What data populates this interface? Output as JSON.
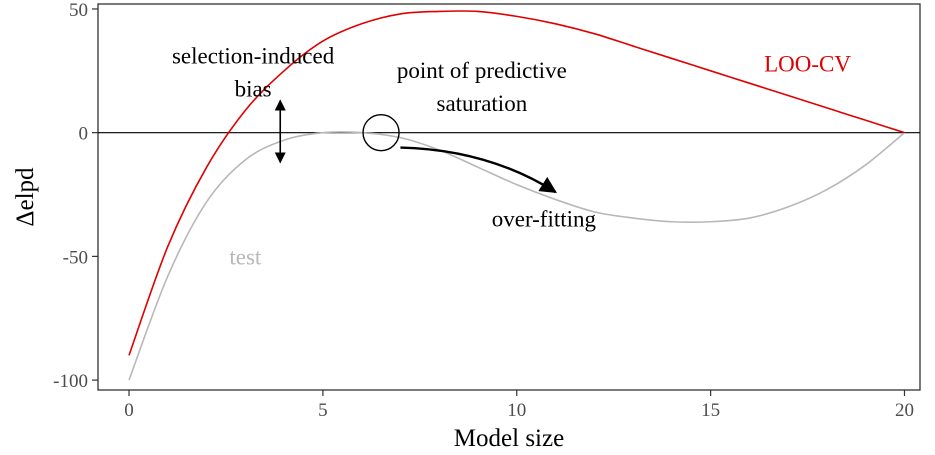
{
  "chart_data": {
    "type": "line",
    "xlabel": "Model size",
    "ylabel": "Δelpd",
    "xlim": [
      -0.8,
      20.4
    ],
    "ylim": [
      -104,
      52
    ],
    "x_ticks": [
      0,
      5,
      10,
      15,
      20
    ],
    "x_tick_labels": [
      "0",
      "5",
      "10",
      "15",
      "20"
    ],
    "y_ticks": [
      50,
      0,
      -50,
      -100
    ],
    "y_tick_labels": [
      "50",
      "0",
      "-50",
      "-100"
    ],
    "grid": false,
    "reference_line_y": 0,
    "series": [
      {
        "name": "LOO-CV",
        "color": "#e00000",
        "label_at": [
          17.5,
          28
        ],
        "points": [
          [
            0,
            -90
          ],
          [
            1,
            -46
          ],
          [
            2,
            -14
          ],
          [
            3,
            9
          ],
          [
            4,
            25
          ],
          [
            5,
            37
          ],
          [
            6,
            44
          ],
          [
            7,
            48
          ],
          [
            8,
            49
          ],
          [
            9,
            49
          ],
          [
            10,
            47
          ],
          [
            11,
            44
          ],
          [
            12,
            40
          ],
          [
            13,
            35
          ],
          [
            14,
            30
          ],
          [
            15,
            25
          ],
          [
            16,
            20
          ],
          [
            17,
            15
          ],
          [
            18,
            10
          ],
          [
            19,
            5
          ],
          [
            20,
            0
          ]
        ]
      },
      {
        "name": "test",
        "color": "#b8b8b8",
        "label_at": [
          3.0,
          -50
        ],
        "points": [
          [
            0,
            -100
          ],
          [
            1,
            -58
          ],
          [
            2,
            -28
          ],
          [
            3,
            -11
          ],
          [
            4,
            -3
          ],
          [
            5,
            0
          ],
          [
            6,
            0
          ],
          [
            7,
            -2
          ],
          [
            8,
            -7
          ],
          [
            9,
            -14
          ],
          [
            10,
            -21
          ],
          [
            11,
            -27
          ],
          [
            12,
            -32
          ],
          [
            13,
            -34.5
          ],
          [
            14,
            -36
          ],
          [
            15,
            -36
          ],
          [
            16,
            -34.5
          ],
          [
            17,
            -30
          ],
          [
            18,
            -23
          ],
          [
            19,
            -13
          ],
          [
            20,
            0
          ]
        ]
      }
    ],
    "annotations": [
      {
        "id": "selection-bias",
        "lines": [
          "selection-induced",
          "bias"
        ],
        "at": [
          3.2,
          28
        ]
      },
      {
        "id": "saturation",
        "lines": [
          "point of predictive",
          "saturation"
        ],
        "at": [
          9.1,
          22
        ]
      },
      {
        "id": "over-fitting",
        "lines": [
          "over-fitting"
        ],
        "at": [
          10.7,
          -38
        ]
      }
    ],
    "double_arrow": {
      "x": 3.9,
      "y_from": 13,
      "y_to": -12
    },
    "circle_marker": {
      "x": 6.5,
      "y": 0
    },
    "curved_arrow": {
      "from": [
        7.0,
        -6
      ],
      "to": [
        11.0,
        -24
      ]
    }
  }
}
